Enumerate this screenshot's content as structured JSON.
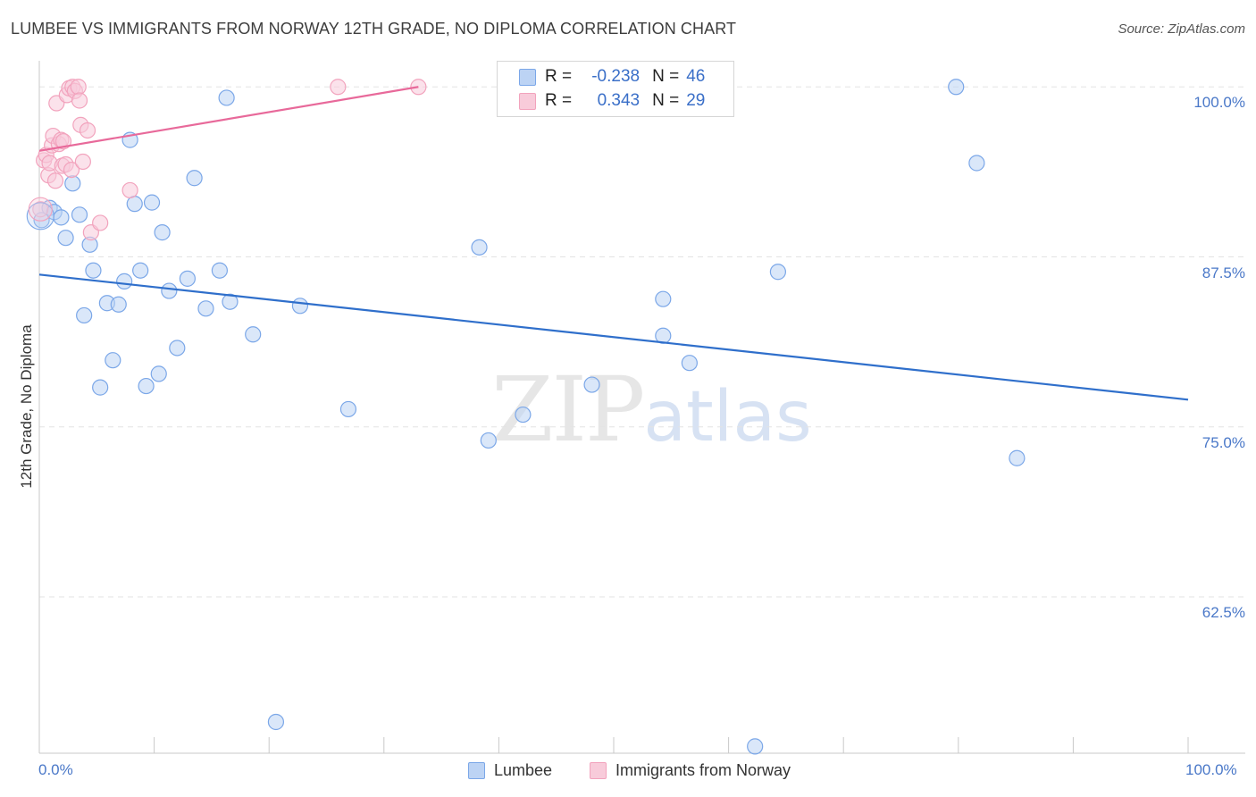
{
  "chart_data": {
    "type": "scatter",
    "title": "LUMBEE VS IMMIGRANTS FROM NORWAY 12TH GRADE, NO DIPLOMA CORRELATION CHART",
    "source": "Source: ZipAtlas.com",
    "xlabel": "",
    "ylabel": "12th Grade, No Diploma",
    "xlim": [
      0,
      100
    ],
    "ylim": [
      51,
      101.2
    ],
    "x_tick_labels": [
      "0.0%",
      "100.0%"
    ],
    "y_ticks": [
      100,
      87.5,
      75,
      62.5
    ],
    "y_tick_labels": [
      "100.0%",
      "87.5%",
      "75.0%",
      "62.5%"
    ],
    "grid": true,
    "watermark": {
      "zip": "ZIP",
      "atlas": "atlas"
    },
    "legend_position": "top-center",
    "series": [
      {
        "name": "Lumbee",
        "color": "#7ba7e8",
        "fill": "#bcd3f4",
        "line_color": "#2f6fcb",
        "r_label": "R =",
        "r_value": "-0.238",
        "n_label": "N =",
        "n_value": "46",
        "trend": [
          [
            0,
            86.2
          ],
          [
            100,
            77.0
          ]
        ],
        "points": [
          [
            0.2,
            90.2
          ],
          [
            0.9,
            91.1
          ],
          [
            1.3,
            90.8
          ],
          [
            1.9,
            90.4
          ],
          [
            2.3,
            88.9
          ],
          [
            2.9,
            92.9
          ],
          [
            3.5,
            90.6
          ],
          [
            3.9,
            83.2
          ],
          [
            4.4,
            88.4
          ],
          [
            4.7,
            86.5
          ],
          [
            5.3,
            77.9
          ],
          [
            5.9,
            84.1
          ],
          [
            6.4,
            79.9
          ],
          [
            6.9,
            84.0
          ],
          [
            7.4,
            85.7
          ],
          [
            7.9,
            96.1
          ],
          [
            8.3,
            91.4
          ],
          [
            8.8,
            86.5
          ],
          [
            9.3,
            78.0
          ],
          [
            9.8,
            91.5
          ],
          [
            10.4,
            78.9
          ],
          [
            10.7,
            89.3
          ],
          [
            11.3,
            85.0
          ],
          [
            12.0,
            80.8
          ],
          [
            12.9,
            85.9
          ],
          [
            13.5,
            93.3
          ],
          [
            14.5,
            83.7
          ],
          [
            15.7,
            86.5
          ],
          [
            16.3,
            99.2
          ],
          [
            16.6,
            84.2
          ],
          [
            18.6,
            81.8
          ],
          [
            20.6,
            53.3
          ],
          [
            22.7,
            83.9
          ],
          [
            26.9,
            76.3
          ],
          [
            38.3,
            88.2
          ],
          [
            39.1,
            74.0
          ],
          [
            42.1,
            75.9
          ],
          [
            48.1,
            78.1
          ],
          [
            54.3,
            84.4
          ],
          [
            54.3,
            81.7
          ],
          [
            56.6,
            79.7
          ],
          [
            62.3,
            51.5
          ],
          [
            64.3,
            86.4
          ],
          [
            79.8,
            100.0
          ],
          [
            81.6,
            94.4
          ],
          [
            85.1,
            72.7
          ]
        ]
      },
      {
        "name": "Immigrants from Norway",
        "color": "#f2a3bd",
        "fill": "#f8cbda",
        "line_color": "#e8699a",
        "r_label": "R =",
        "r_value": "0.343",
        "n_label": "N =",
        "n_value": "29",
        "trend": [
          [
            0,
            95.3
          ],
          [
            33.0,
            100.0
          ]
        ],
        "points": [
          [
            0.1,
            91.0
          ],
          [
            0.4,
            94.6
          ],
          [
            0.6,
            95.0
          ],
          [
            0.8,
            93.5
          ],
          [
            0.9,
            94.4
          ],
          [
            1.1,
            95.7
          ],
          [
            1.2,
            96.4
          ],
          [
            1.4,
            93.1
          ],
          [
            1.5,
            98.8
          ],
          [
            1.7,
            95.8
          ],
          [
            1.9,
            96.1
          ],
          [
            2.0,
            94.2
          ],
          [
            2.1,
            96.0
          ],
          [
            2.3,
            94.3
          ],
          [
            2.4,
            99.4
          ],
          [
            2.6,
            99.9
          ],
          [
            2.8,
            93.9
          ],
          [
            2.9,
            100.0
          ],
          [
            3.1,
            99.7
          ],
          [
            3.4,
            100.0
          ],
          [
            3.5,
            99.0
          ],
          [
            3.6,
            97.2
          ],
          [
            3.8,
            94.5
          ],
          [
            4.2,
            96.8
          ],
          [
            4.5,
            89.3
          ],
          [
            5.3,
            90.0
          ],
          [
            7.9,
            92.4
          ],
          [
            26.0,
            100.0
          ],
          [
            33.0,
            100.0
          ]
        ]
      }
    ]
  },
  "colors": {
    "grid": "#e3e3e3",
    "axis": "#c9c9c9",
    "tick_text": "#4a78c8",
    "watermark_zip": "#e6e6e6",
    "watermark_atlas": "#d7e2f3"
  }
}
